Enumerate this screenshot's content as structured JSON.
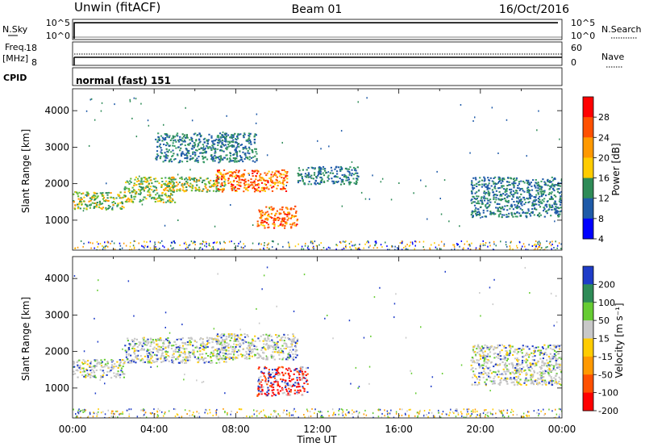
{
  "header": {
    "station": "Unwin (fitACF)",
    "beam": "Beam 01",
    "date": "16/Oct/2016"
  },
  "nsky_panel": {
    "left_label": "N.Sky",
    "right_label": "N.Search",
    "ticks_left": [
      "10^5",
      "10^0"
    ],
    "ticks_right": [
      "10^5",
      "10^0"
    ]
  },
  "freq_panel": {
    "left_label_1": "Freq.",
    "left_label_2": "[MHz]",
    "right_label": "Nave",
    "ticks_left": [
      "18",
      "8"
    ],
    "ticks_right": [
      "60",
      "0"
    ]
  },
  "cpid": {
    "label": "CPID",
    "value": "normal (fast) 151"
  },
  "chart_data": [
    {
      "type": "heatmap",
      "name": "power",
      "ylabel": "Slant Range [km]",
      "ylim": [
        180,
        4600
      ],
      "yticks": [
        "4000",
        "3000",
        "2000",
        "1000"
      ],
      "colorbar": {
        "label": "Power [dB]",
        "ticks": [
          "28",
          "24",
          "20",
          "16",
          "12",
          "8",
          "4"
        ],
        "colors": [
          "#ff0000",
          "#ff5000",
          "#ff9900",
          "#ffcc00",
          "#2e8b57",
          "#1e5aa8",
          "#0000ff"
        ]
      },
      "regions": [
        {
          "x": [
            0.0,
            2.5
          ],
          "y": [
            1300,
            1800
          ],
          "level": "mid"
        },
        {
          "x": [
            2.5,
            5.0
          ],
          "y": [
            1500,
            2200
          ],
          "level": "mid"
        },
        {
          "x": [
            4.5,
            7.5
          ],
          "y": [
            1800,
            2200
          ],
          "level": "mid"
        },
        {
          "x": [
            7.0,
            10.5
          ],
          "y": [
            1800,
            2400
          ],
          "level": "high"
        },
        {
          "x": [
            9.0,
            11.0
          ],
          "y": [
            800,
            1400
          ],
          "level": "high"
        },
        {
          "x": [
            4.0,
            9.0
          ],
          "y": [
            2600,
            3400
          ],
          "level": "low"
        },
        {
          "x": [
            11.0,
            14.0
          ],
          "y": [
            2000,
            2500
          ],
          "level": "low"
        },
        {
          "x": [
            19.5,
            24.0
          ],
          "y": [
            1100,
            2200
          ],
          "level": "low"
        }
      ]
    },
    {
      "type": "heatmap",
      "name": "velocity",
      "ylabel": "Slant Range [km]",
      "xlabel": "Time UT",
      "ylim": [
        180,
        4600
      ],
      "yticks": [
        "4000",
        "3000",
        "2000",
        "1000"
      ],
      "xticks": [
        "00:00",
        "04:00",
        "08:00",
        "12:00",
        "16:00",
        "20:00",
        "00:00"
      ],
      "colorbar": {
        "label": "Velocity [m s⁻¹]",
        "ticks": [
          "200",
          "100",
          "50",
          "15",
          "-15",
          "-50",
          "-100",
          "-200"
        ],
        "colors": [
          "#1e3cc8",
          "#2e8b57",
          "#66cc33",
          "#c8c8c8",
          "#ffcc00",
          "#ff9900",
          "#ff5000",
          "#ff0000"
        ]
      },
      "regions": [
        {
          "x": [
            0.0,
            2.5
          ],
          "y": [
            1300,
            1800
          ],
          "level": "ground"
        },
        {
          "x": [
            2.5,
            7.5
          ],
          "y": [
            1700,
            2400
          ],
          "level": "ground"
        },
        {
          "x": [
            7.0,
            11.0
          ],
          "y": [
            1800,
            2500
          ],
          "level": "ground"
        },
        {
          "x": [
            9.0,
            11.5
          ],
          "y": [
            800,
            1600
          ],
          "level": "red"
        },
        {
          "x": [
            19.5,
            24.0
          ],
          "y": [
            1100,
            2200
          ],
          "level": "ground"
        }
      ]
    }
  ]
}
